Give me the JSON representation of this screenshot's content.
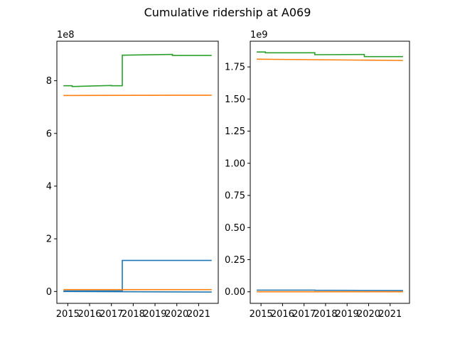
{
  "figure": {
    "title": "Cumulative ridership at A069"
  },
  "chart_data": [
    {
      "type": "line",
      "title": "",
      "xlabel": "",
      "ylabel": "",
      "offset_text": "1e8",
      "x_ticks": [
        2015,
        2016,
        2017,
        2018,
        2019,
        2020,
        2021
      ],
      "x_tick_labels": [
        "2015",
        "2016",
        "2017",
        "2018",
        "2019",
        "2020",
        "2021"
      ],
      "y_ticks": [
        0,
        2,
        4,
        6,
        8
      ],
      "y_tick_labels": [
        "0",
        "2",
        "4",
        "6",
        "8"
      ],
      "xlim": [
        2014.5,
        2021.9
      ],
      "ylim": [
        -0.45,
        9.5
      ],
      "grid": false,
      "series": [
        {
          "color": "#1f77b4",
          "points": [
            [
              2014.8,
              0.02
            ],
            [
              2017.5,
              0.02
            ],
            [
              2017.5,
              1.18
            ],
            [
              2021.6,
              1.18
            ]
          ]
        },
        {
          "color": "#1f77b4",
          "points": [
            [
              2014.8,
              0.0
            ],
            [
              2021.6,
              -0.02
            ]
          ]
        },
        {
          "color": "#ff7f0e",
          "points": [
            [
              2014.8,
              0.07
            ],
            [
              2021.6,
              0.07
            ]
          ]
        },
        {
          "color": "#ff7f0e",
          "points": [
            [
              2014.8,
              7.44
            ],
            [
              2021.6,
              7.45
            ]
          ]
        },
        {
          "color": "#2ca02c",
          "points": [
            [
              2014.8,
              7.81
            ],
            [
              2015.2,
              7.81
            ],
            [
              2015.2,
              7.78
            ],
            [
              2017.0,
              7.82
            ],
            [
              2017.0,
              7.81
            ],
            [
              2017.5,
              7.81
            ],
            [
              2017.5,
              8.97
            ],
            [
              2019.8,
              9.0
            ],
            [
              2019.8,
              8.96
            ],
            [
              2021.6,
              8.96
            ]
          ]
        }
      ]
    },
    {
      "type": "line",
      "title": "",
      "xlabel": "",
      "ylabel": "",
      "offset_text": "1e9",
      "x_ticks": [
        2015,
        2016,
        2017,
        2018,
        2019,
        2020,
        2021
      ],
      "x_tick_labels": [
        "2015",
        "2016",
        "2017",
        "2018",
        "2019",
        "2020",
        "2021"
      ],
      "y_ticks": [
        0.0,
        0.25,
        0.5,
        0.75,
        1.0,
        1.25,
        1.5,
        1.75
      ],
      "y_tick_labels": [
        "0.00",
        "0.25",
        "0.50",
        "0.75",
        "1.00",
        "1.25",
        "1.50",
        "1.75"
      ],
      "xlim": [
        2014.5,
        2021.9
      ],
      "ylim": [
        -0.09,
        1.95
      ],
      "grid": false,
      "series": [
        {
          "color": "#1f77b4",
          "points": [
            [
              2014.8,
              0.013
            ],
            [
              2017.5,
              0.013
            ],
            [
              2017.5,
              0.012
            ],
            [
              2021.6,
              0.01
            ]
          ]
        },
        {
          "color": "#ff7f0e",
          "points": [
            [
              2014.8,
              0.0
            ],
            [
              2021.6,
              0.0
            ]
          ]
        },
        {
          "color": "#ff7f0e",
          "points": [
            [
              2014.8,
              1.81
            ],
            [
              2021.6,
              1.8
            ]
          ]
        },
        {
          "color": "#2ca02c",
          "points": [
            [
              2014.8,
              1.866
            ],
            [
              2015.2,
              1.866
            ],
            [
              2015.2,
              1.86
            ],
            [
              2017.5,
              1.86
            ],
            [
              2017.5,
              1.845
            ],
            [
              2019.8,
              1.847
            ],
            [
              2019.8,
              1.83
            ],
            [
              2021.6,
              1.83
            ]
          ]
        }
      ]
    }
  ]
}
